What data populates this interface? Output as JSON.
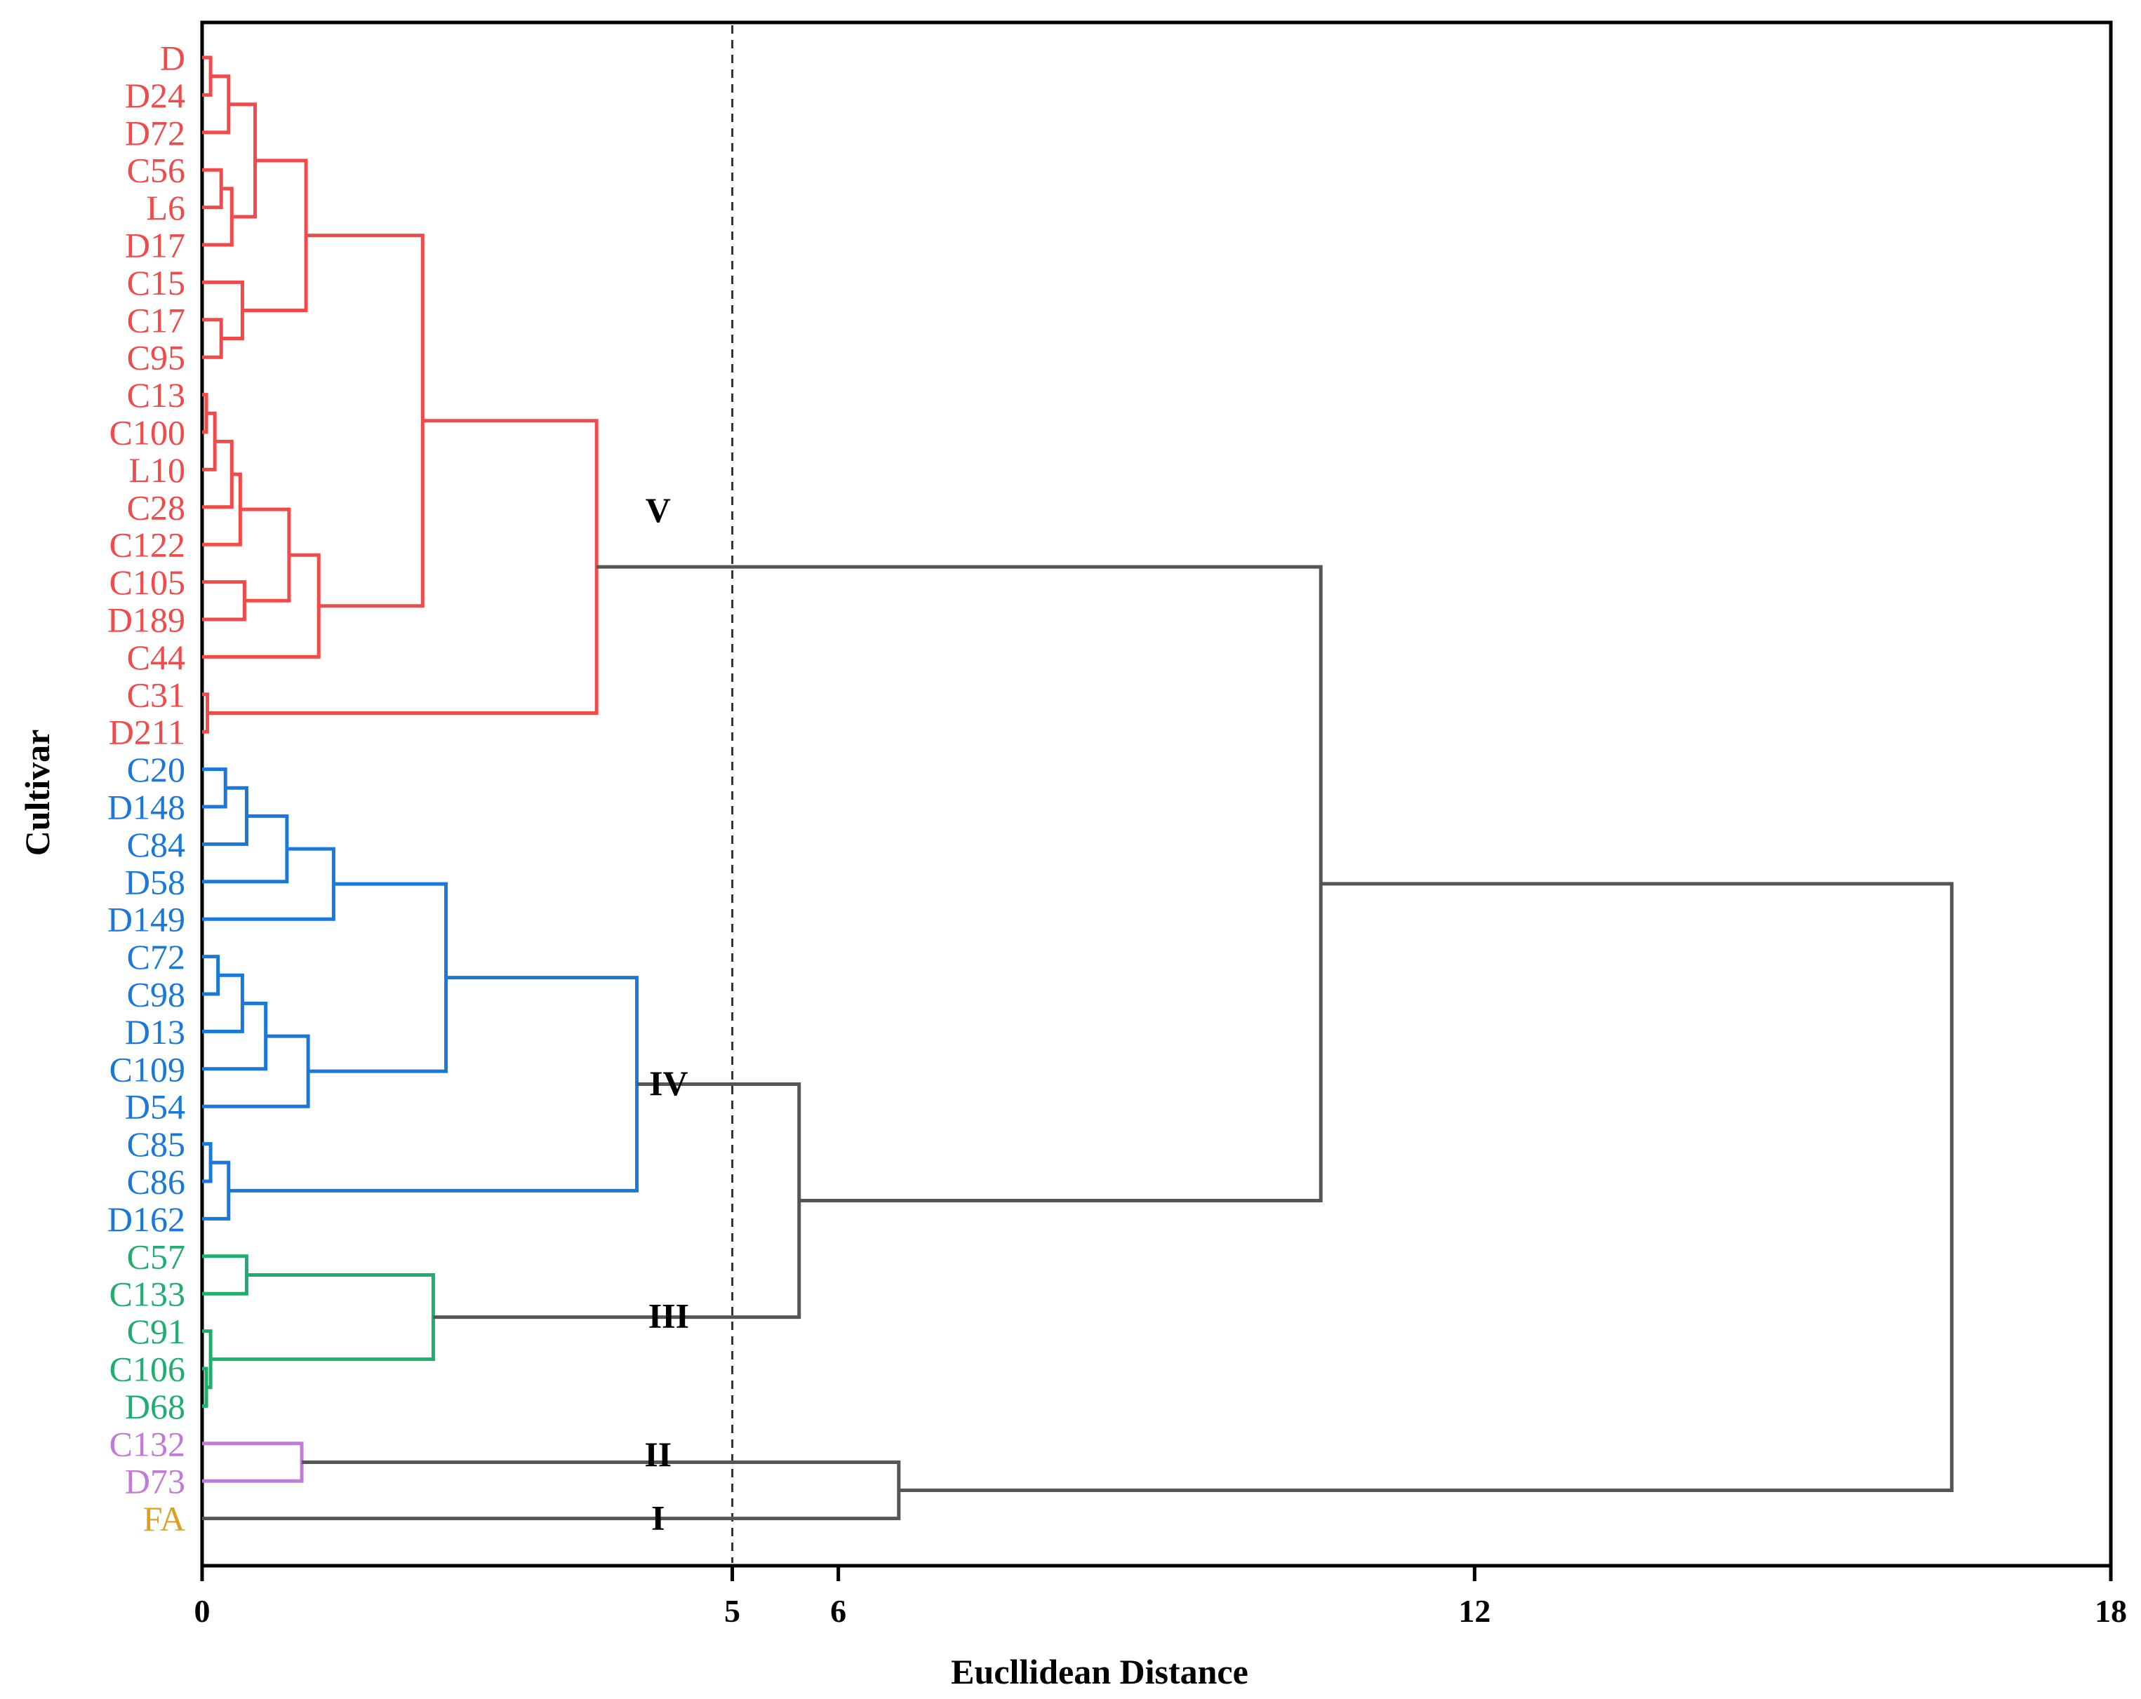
{
  "chart_data": {
    "type": "dendrogram",
    "orientation": "horizontal",
    "xlabel": "Eucllidean Distance",
    "ylabel": "Cultivar",
    "xlim": [
      0,
      18
    ],
    "xticks": [
      "0",
      "5",
      "6",
      "12",
      "18"
    ],
    "cutoff": 5,
    "leaves": [
      {
        "name": "D",
        "group": "V"
      },
      {
        "name": "D24",
        "group": "V"
      },
      {
        "name": "D72",
        "group": "V"
      },
      {
        "name": "C56",
        "group": "V"
      },
      {
        "name": "L6",
        "group": "V"
      },
      {
        "name": "D17",
        "group": "V"
      },
      {
        "name": "C15",
        "group": "V"
      },
      {
        "name": "C17",
        "group": "V"
      },
      {
        "name": "C95",
        "group": "V"
      },
      {
        "name": "C13",
        "group": "V"
      },
      {
        "name": "C100",
        "group": "V"
      },
      {
        "name": "L10",
        "group": "V"
      },
      {
        "name": "C28",
        "group": "V"
      },
      {
        "name": "C122",
        "group": "V"
      },
      {
        "name": "C105",
        "group": "V"
      },
      {
        "name": "D189",
        "group": "V"
      },
      {
        "name": "C44",
        "group": "V"
      },
      {
        "name": "C31",
        "group": "V"
      },
      {
        "name": "D211",
        "group": "V"
      },
      {
        "name": "C20",
        "group": "IV"
      },
      {
        "name": "D148",
        "group": "IV"
      },
      {
        "name": "C84",
        "group": "IV"
      },
      {
        "name": "D58",
        "group": "IV"
      },
      {
        "name": "D149",
        "group": "IV"
      },
      {
        "name": "C72",
        "group": "IV"
      },
      {
        "name": "C98",
        "group": "IV"
      },
      {
        "name": "D13",
        "group": "IV"
      },
      {
        "name": "C109",
        "group": "IV"
      },
      {
        "name": "D54",
        "group": "IV"
      },
      {
        "name": "C85",
        "group": "IV"
      },
      {
        "name": "C86",
        "group": "IV"
      },
      {
        "name": "D162",
        "group": "IV"
      },
      {
        "name": "C57",
        "group": "III"
      },
      {
        "name": "C133",
        "group": "III"
      },
      {
        "name": "C91",
        "group": "III"
      },
      {
        "name": "C106",
        "group": "III"
      },
      {
        "name": "D68",
        "group": "III"
      },
      {
        "name": "C132",
        "group": "II"
      },
      {
        "name": "D73",
        "group": "II"
      },
      {
        "name": "FA",
        "group": "I"
      }
    ],
    "group_colors": {
      "V": "#f04a4a",
      "IV": "#1a78d8",
      "III": "#1fae6e",
      "II": "#c27ad8",
      "I": "#dca020",
      "link": "#555555"
    },
    "cluster_labels": [
      {
        "label": "V",
        "at_x": 4.3,
        "leaf_pos": 12.4
      },
      {
        "label": "IV",
        "at_x": 4.4,
        "leaf_pos": 27.7
      },
      {
        "label": "III",
        "at_x": 4.4,
        "leaf_pos": 33.9
      },
      {
        "label": "II",
        "at_x": 4.3,
        "leaf_pos": 37.6
      },
      {
        "label": "I",
        "at_x": 4.3,
        "leaf_pos": 39.3
      }
    ],
    "merges": [
      {
        "id": "v1",
        "children": [
          "L:0",
          "L:1"
        ],
        "height": 0.08,
        "color": "V"
      },
      {
        "id": "v2",
        "children": [
          "v1",
          "L:2"
        ],
        "height": 0.25,
        "color": "V"
      },
      {
        "id": "v3",
        "children": [
          "L:3",
          "L:4"
        ],
        "height": 0.18,
        "color": "V"
      },
      {
        "id": "v4",
        "children": [
          "v3",
          "L:5"
        ],
        "height": 0.28,
        "color": "V"
      },
      {
        "id": "v5",
        "children": [
          "v2",
          "v4"
        ],
        "height": 0.5,
        "color": "V"
      },
      {
        "id": "v6",
        "children": [
          "L:7",
          "L:8"
        ],
        "height": 0.18,
        "color": "V"
      },
      {
        "id": "v7",
        "children": [
          "L:6",
          "v6"
        ],
        "height": 0.38,
        "color": "V"
      },
      {
        "id": "v8",
        "children": [
          "v5",
          "v7"
        ],
        "height": 0.98,
        "color": "V"
      },
      {
        "id": "v9",
        "children": [
          "L:9",
          "L:10"
        ],
        "height": 0.04,
        "color": "V"
      },
      {
        "id": "v10",
        "children": [
          "v9",
          "L:11"
        ],
        "height": 0.12,
        "color": "V"
      },
      {
        "id": "v11",
        "children": [
          "v10",
          "L:12"
        ],
        "height": 0.28,
        "color": "V"
      },
      {
        "id": "v12",
        "children": [
          "v11",
          "L:13"
        ],
        "height": 0.36,
        "color": "V"
      },
      {
        "id": "v13",
        "children": [
          "L:14",
          "L:15"
        ],
        "height": 0.4,
        "color": "V"
      },
      {
        "id": "v14",
        "children": [
          "v12",
          "v13"
        ],
        "height": 0.82,
        "color": "V"
      },
      {
        "id": "v15",
        "children": [
          "v14",
          "L:16"
        ],
        "height": 1.1,
        "color": "V"
      },
      {
        "id": "v16",
        "children": [
          "v8",
          "v15"
        ],
        "height": 2.08,
        "color": "V"
      },
      {
        "id": "v17",
        "children": [
          "L:17",
          "L:18"
        ],
        "height": 0.05,
        "color": "V"
      },
      {
        "id": "V",
        "children": [
          "v16",
          "v17"
        ],
        "height": 3.72,
        "color": "V"
      },
      {
        "id": "b1",
        "children": [
          "L:19",
          "L:20"
        ],
        "height": 0.22,
        "color": "IV"
      },
      {
        "id": "b2",
        "children": [
          "b1",
          "L:21"
        ],
        "height": 0.42,
        "color": "IV"
      },
      {
        "id": "b3",
        "children": [
          "b2",
          "L:22"
        ],
        "height": 0.8,
        "color": "IV"
      },
      {
        "id": "b4",
        "children": [
          "b3",
          "L:23"
        ],
        "height": 1.24,
        "color": "IV"
      },
      {
        "id": "b5",
        "children": [
          "L:24",
          "L:25"
        ],
        "height": 0.15,
        "color": "IV"
      },
      {
        "id": "b6",
        "children": [
          "b5",
          "L:26"
        ],
        "height": 0.38,
        "color": "IV"
      },
      {
        "id": "b7",
        "children": [
          "b6",
          "L:27"
        ],
        "height": 0.6,
        "color": "IV"
      },
      {
        "id": "b8",
        "children": [
          "b7",
          "L:28"
        ],
        "height": 1.0,
        "color": "IV"
      },
      {
        "id": "b9",
        "children": [
          "b4",
          "b8"
        ],
        "height": 2.3,
        "color": "IV"
      },
      {
        "id": "b10",
        "children": [
          "L:29",
          "L:30"
        ],
        "height": 0.08,
        "color": "IV"
      },
      {
        "id": "b11",
        "children": [
          "b10",
          "L:31"
        ],
        "height": 0.25,
        "color": "IV"
      },
      {
        "id": "IV",
        "children": [
          "b9",
          "b11"
        ],
        "height": 4.1,
        "color": "IV"
      },
      {
        "id": "g1",
        "children": [
          "L:32",
          "L:33"
        ],
        "height": 0.42,
        "color": "III"
      },
      {
        "id": "g2",
        "children": [
          "L:35",
          "L:36"
        ],
        "height": 0.04,
        "color": "III"
      },
      {
        "id": "g3",
        "children": [
          "L:34",
          "g2"
        ],
        "height": 0.08,
        "color": "III"
      },
      {
        "id": "III",
        "children": [
          "g1",
          "g3"
        ],
        "height": 2.18,
        "color": "III"
      },
      {
        "id": "II",
        "children": [
          "L:37",
          "L:38"
        ],
        "height": 0.94,
        "color": "II"
      },
      {
        "id": "IV_III",
        "children": [
          "IV",
          "III"
        ],
        "height": 5.63,
        "color": "link"
      },
      {
        "id": "V_IV_III",
        "children": [
          "V",
          "IV_III"
        ],
        "height": 10.55,
        "color": "link"
      },
      {
        "id": "II_I",
        "children": [
          "II",
          "L:39"
        ],
        "height": 6.57,
        "color": "link"
      },
      {
        "id": "root",
        "children": [
          "V_IV_III",
          "II_I"
        ],
        "height": 16.5,
        "color": "link"
      }
    ]
  }
}
